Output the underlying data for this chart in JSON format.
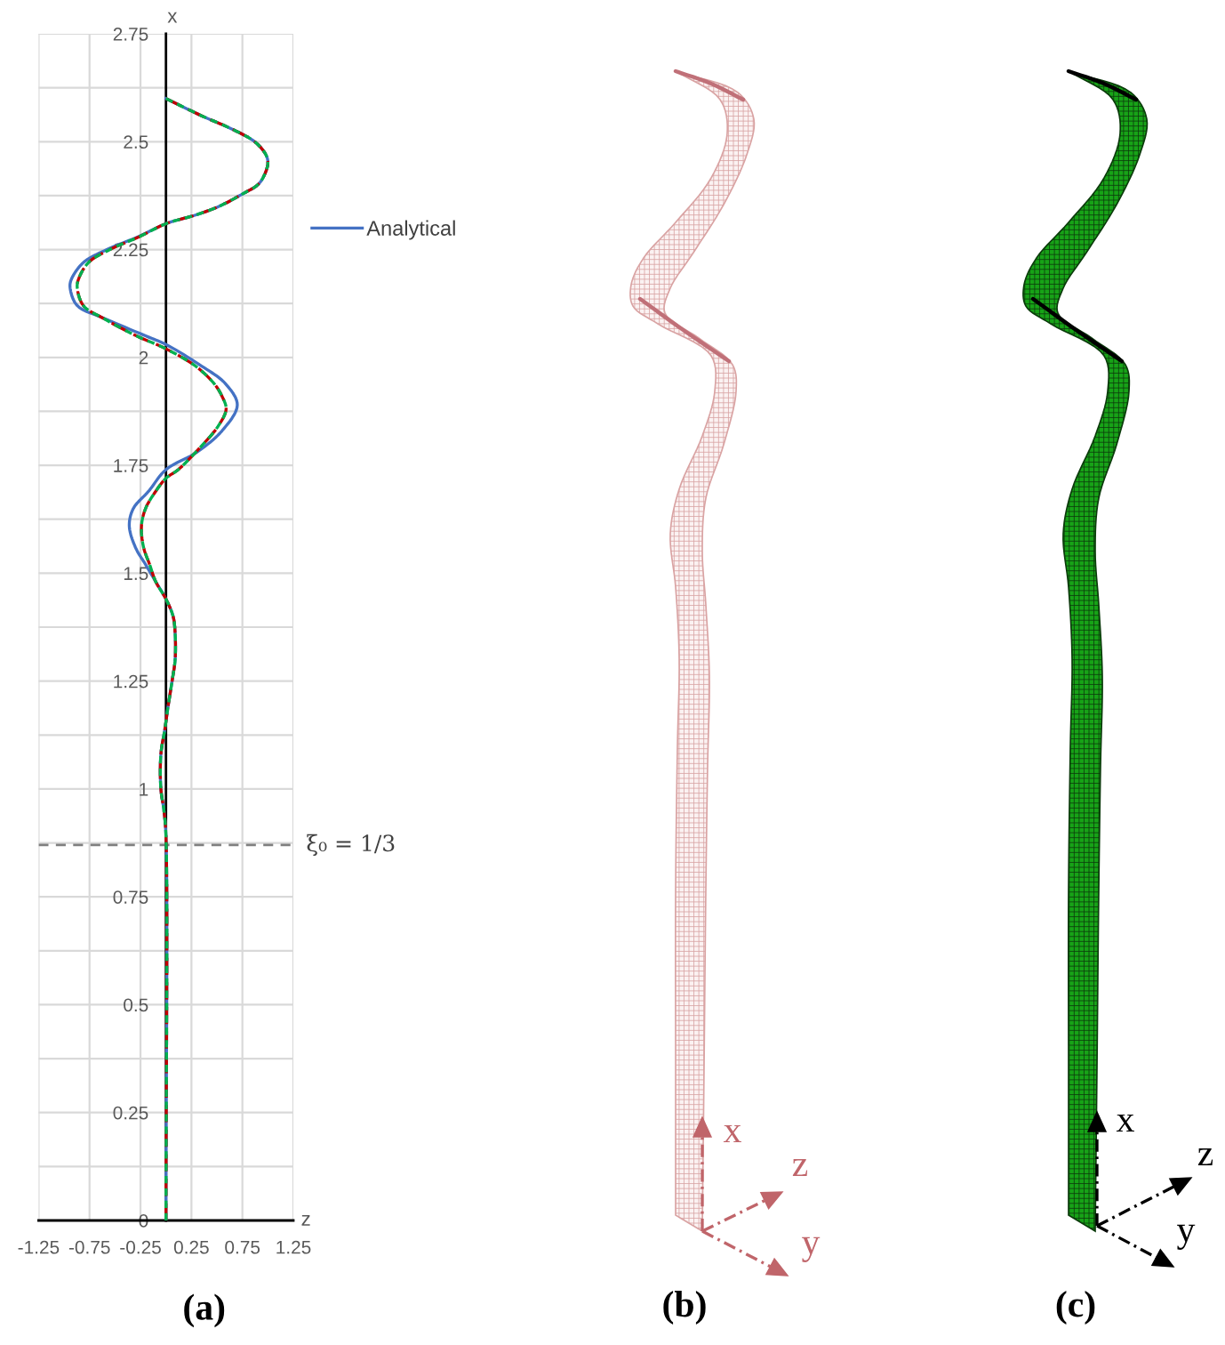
{
  "chart_data": [
    {
      "type": "line",
      "title": "(a)",
      "xlabel": "z",
      "ylabel": "x",
      "xlim": [
        -1.25,
        1.25
      ],
      "xticks": [
        -1.25,
        -0.75,
        -0.25,
        0.25,
        0.75,
        1.25
      ],
      "ylim": [
        0,
        2.75
      ],
      "yticks": [
        0,
        {
          "value": 0.125,
          "label": null
        },
        0.25,
        {
          "value": 0.375,
          "label": null
        },
        0.5,
        {
          "value": 0.625,
          "label": null
        },
        0.75,
        {
          "value": 0.875,
          "label": null
        },
        1,
        {
          "value": 1.125,
          "label": null
        },
        1.25,
        {
          "value": 1.375,
          "label": null
        },
        1.5,
        {
          "value": 1.625,
          "label": null
        },
        1.75,
        {
          "value": 1.875,
          "label": null
        },
        2,
        {
          "value": 2.125,
          "label": null
        },
        2.25,
        {
          "value": 2.375,
          "label": null
        },
        2.5,
        {
          "value": 2.625,
          "label": null
        },
        2.75
      ],
      "grid": true,
      "legend": "right",
      "ref_lines": [
        {
          "axis": "y",
          "value": 0.87,
          "label": "ξ₀ = 1/3",
          "color": "#808080",
          "line_style": "dashed"
        }
      ],
      "series": [
        {
          "name": "Analytical",
          "color": "#4472c4",
          "line_style": "solid",
          "x": [
            0,
            0,
            -0.02,
            -0.05,
            -0.05,
            -0.01,
            0.02,
            0.06,
            0.09,
            0.09,
            0.07,
            0,
            -0.1,
            -0.2,
            -0.3,
            -0.36,
            -0.32,
            -0.17,
            0,
            0.3,
            0.55,
            0.7,
            0.58,
            0.35,
            0,
            -0.2,
            -0.6,
            -0.87,
            -0.94,
            -0.93,
            -0.81,
            -0.58,
            -0.27,
            0,
            0.29,
            0.52,
            0.76,
            0.9,
            0.96,
            1.0,
            0.98,
            0.87,
            0.64,
            0.35,
            0
          ],
          "values": [
            0,
            0.89,
            0.95,
            1.0,
            1.08,
            1.14,
            1.19,
            1.25,
            1.3,
            1.36,
            1.4,
            1.44,
            1.48,
            1.52,
            1.56,
            1.61,
            1.65,
            1.69,
            1.74,
            1.78,
            1.83,
            1.89,
            1.94,
            1.98,
            2.03,
            2.05,
            2.09,
            2.12,
            2.16,
            2.18,
            2.22,
            2.25,
            2.28,
            2.31,
            2.33,
            2.35,
            2.38,
            2.4,
            2.42,
            2.45,
            2.47,
            2.5,
            2.53,
            2.56,
            2.6
          ]
        },
        {
          "color": "#c00000",
          "line_style": "dashed",
          "x": [
            0,
            0,
            -0.02,
            -0.05,
            -0.05,
            -0.01,
            0.02,
            0.06,
            0.09,
            0.09,
            0.07,
            0,
            -0.1,
            -0.16,
            -0.22,
            -0.24,
            -0.2,
            -0.1,
            0,
            0.12,
            0.29,
            0.51,
            0.59,
            0.55,
            0.47,
            0.29,
            0,
            -0.29,
            -0.61,
            -0.81,
            -0.87,
            -0.86,
            -0.76,
            -0.55,
            -0.26,
            0,
            0.29,
            0.52,
            0.76,
            0.9,
            0.96,
            1.0,
            0.98,
            0.87,
            0.64,
            0.35,
            0
          ],
          "values": [
            0,
            0.89,
            0.95,
            1.0,
            1.08,
            1.14,
            1.19,
            1.25,
            1.3,
            1.36,
            1.4,
            1.44,
            1.48,
            1.52,
            1.56,
            1.61,
            1.65,
            1.69,
            1.72,
            1.74,
            1.78,
            1.84,
            1.88,
            1.91,
            1.94,
            1.98,
            2.02,
            2.05,
            2.09,
            2.12,
            2.16,
            2.18,
            2.22,
            2.25,
            2.28,
            2.31,
            2.33,
            2.35,
            2.38,
            2.4,
            2.42,
            2.45,
            2.47,
            2.5,
            2.53,
            2.56,
            2.6
          ]
        },
        {
          "color": "#00b050",
          "line_style": "dashed",
          "x": [
            0,
            0,
            -0.02,
            -0.05,
            -0.05,
            -0.01,
            0.02,
            0.06,
            0.09,
            0.09,
            0.07,
            0,
            -0.1,
            -0.16,
            -0.22,
            -0.24,
            -0.2,
            -0.1,
            0,
            0.12,
            0.29,
            0.51,
            0.59,
            0.55,
            0.47,
            0.29,
            0,
            -0.29,
            -0.61,
            -0.81,
            -0.87,
            -0.86,
            -0.76,
            -0.55,
            -0.26,
            0,
            0.29,
            0.52,
            0.76,
            0.9,
            0.96,
            1.0,
            0.98,
            0.87,
            0.64,
            0.35,
            0
          ],
          "values": [
            0,
            0.89,
            0.95,
            1.0,
            1.08,
            1.14,
            1.19,
            1.25,
            1.3,
            1.36,
            1.4,
            1.44,
            1.48,
            1.52,
            1.56,
            1.61,
            1.65,
            1.69,
            1.72,
            1.74,
            1.78,
            1.84,
            1.88,
            1.91,
            1.94,
            1.98,
            2.02,
            2.05,
            2.09,
            2.12,
            2.16,
            2.18,
            2.22,
            2.25,
            2.28,
            2.31,
            2.33,
            2.35,
            2.38,
            2.4,
            2.42,
            2.45,
            2.47,
            2.5,
            2.53,
            2.56,
            2.6
          ]
        }
      ]
    },
    {
      "type": "other",
      "title": "(b)",
      "annotations": [
        "x",
        "z",
        "y"
      ]
    },
    {
      "type": "other",
      "title": "(c)",
      "annotations": [
        "x",
        "z",
        "y"
      ]
    }
  ]
}
